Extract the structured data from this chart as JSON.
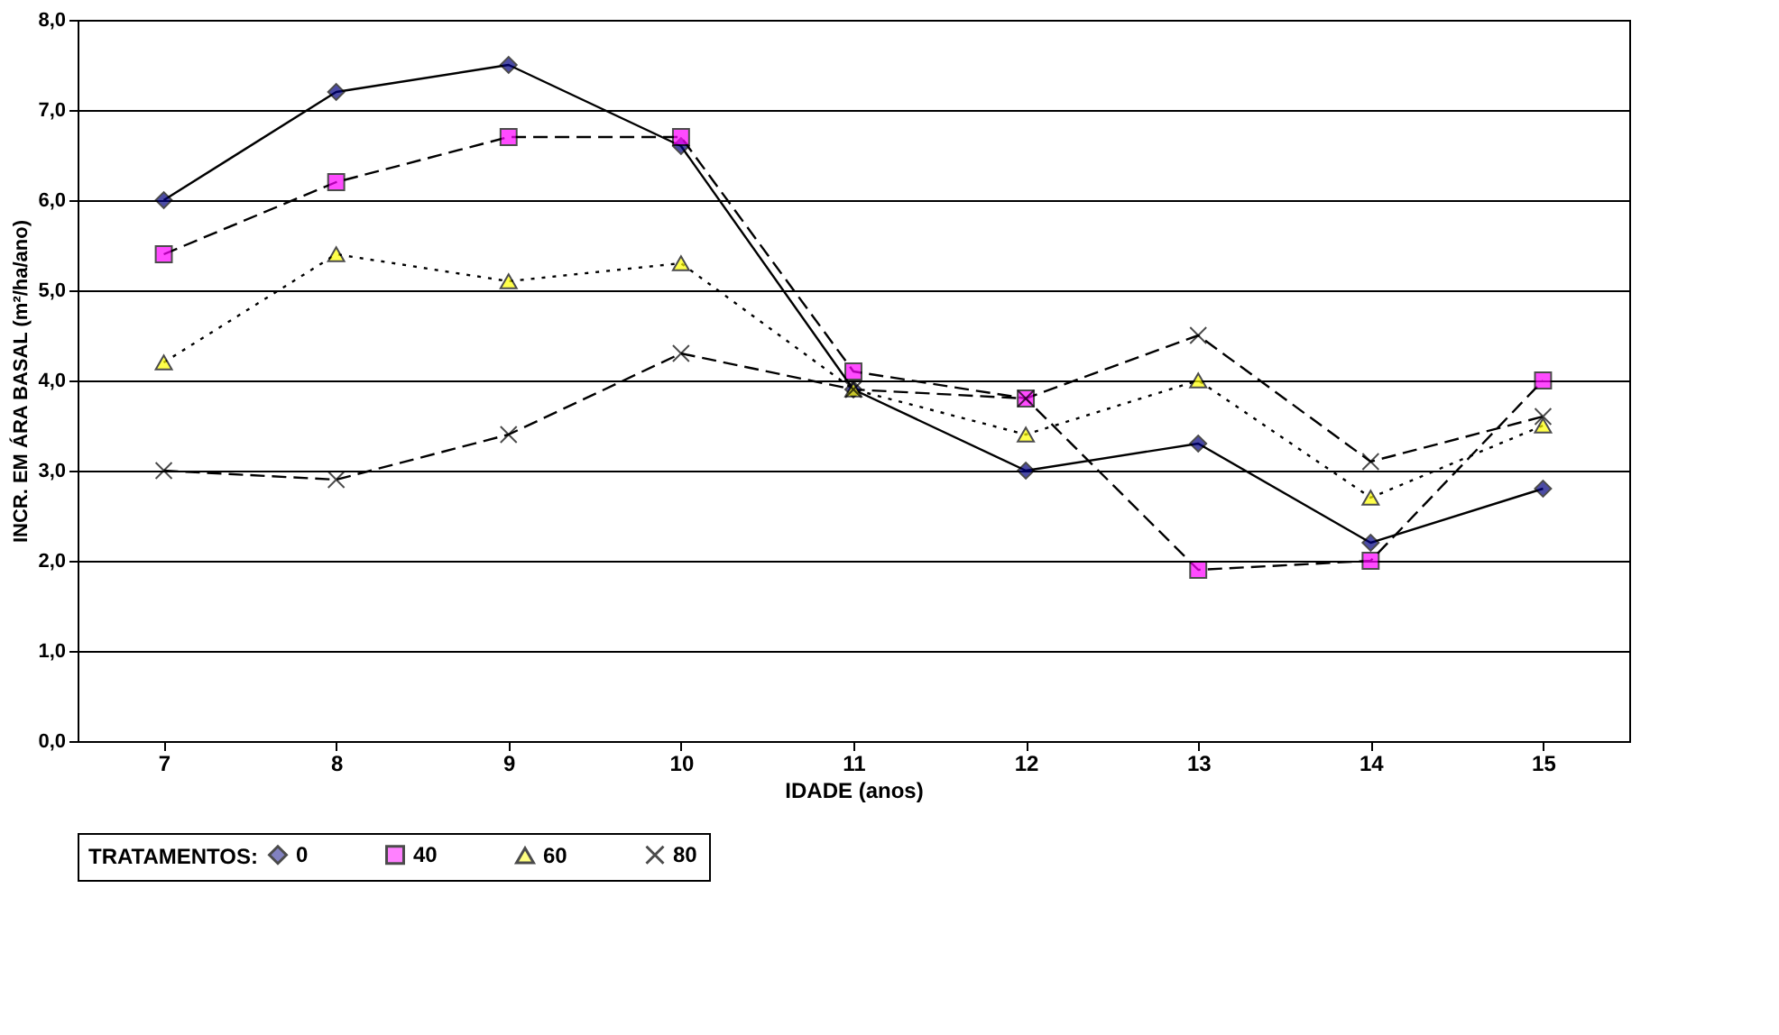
{
  "chart_data": {
    "type": "line",
    "xlabel": "IDADE (anos)",
    "ylabel": "INCR. EM ÁRA BASAL (m²/ha/ano)",
    "legend_title": "TRATAMENTOS:",
    "legend": "bottom",
    "grid": "y",
    "categories": [
      "7",
      "8",
      "9",
      "10",
      "11",
      "12",
      "13",
      "14",
      "15"
    ],
    "ylim": [
      0,
      8
    ],
    "yticks": [
      {
        "value": 0,
        "label": "0,0"
      },
      {
        "value": 1,
        "label": "1,0"
      },
      {
        "value": 2,
        "label": "2,0"
      },
      {
        "value": 3,
        "label": "3,0"
      },
      {
        "value": 4,
        "label": "4,0"
      },
      {
        "value": 5,
        "label": "5,0"
      },
      {
        "value": 6,
        "label": "6,0"
      },
      {
        "value": 7,
        "label": "7,0"
      },
      {
        "value": 8,
        "label": "8,0"
      }
    ],
    "series": [
      {
        "name": "0",
        "color": "#000080",
        "marker": "diamond",
        "line_style": "solid",
        "values": [
          6.0,
          7.2,
          7.5,
          6.6,
          3.9,
          3.0,
          3.3,
          2.2,
          2.8
        ]
      },
      {
        "name": "40",
        "color": "#ff00ff",
        "marker": "square",
        "line_style": "dashed",
        "values": [
          5.4,
          6.2,
          6.7,
          6.7,
          4.1,
          3.8,
          1.9,
          2.0,
          4.0
        ]
      },
      {
        "name": "60",
        "color": "#ffff00",
        "marker": "triangle",
        "line_style": "dotted",
        "values": [
          4.2,
          5.4,
          5.1,
          5.3,
          3.9,
          3.4,
          4.0,
          2.7,
          3.5
        ]
      },
      {
        "name": "80",
        "color": "#000000",
        "marker": "cross",
        "line_style": "dashed",
        "values": [
          3.0,
          2.9,
          3.4,
          4.3,
          3.9,
          3.8,
          4.5,
          3.1,
          3.6
        ]
      }
    ]
  }
}
